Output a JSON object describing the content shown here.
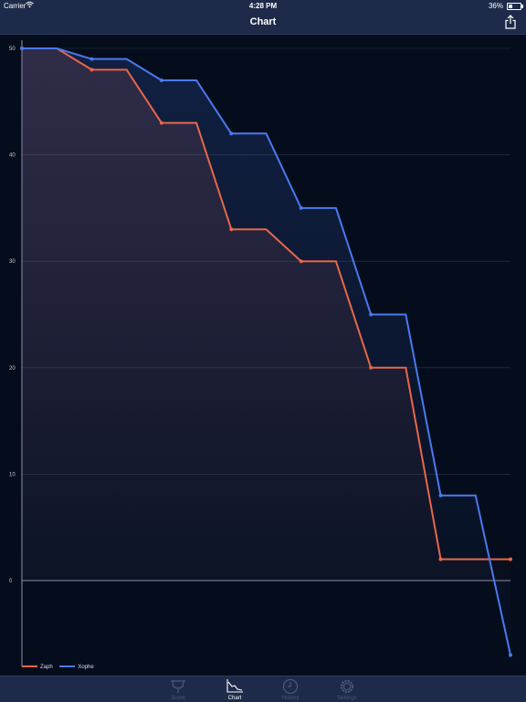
{
  "status_bar": {
    "carrier": "Carrier",
    "time": "4:28 PM",
    "battery": "36%"
  },
  "nav": {
    "title": "Chart",
    "share_icon": "share-icon"
  },
  "tabs": [
    {
      "label": "Score",
      "icon": "score-icon",
      "active": false
    },
    {
      "label": "Chart",
      "icon": "chart-icon",
      "active": true
    },
    {
      "label": "History",
      "icon": "clock-icon",
      "active": false
    },
    {
      "label": "Settings",
      "icon": "gear-icon",
      "active": false
    }
  ],
  "colors": {
    "zaph": "#e8674a",
    "xophe": "#4a79f0",
    "background": "#050d1c",
    "bar": "#1d2a49"
  },
  "chart_data": {
    "type": "line",
    "step": true,
    "x": [
      0,
      1,
      2,
      3,
      4,
      5,
      6,
      7,
      8,
      9,
      10,
      11,
      12,
      13,
      14
    ],
    "series": [
      {
        "name": "Zaph",
        "values": [
          50,
          50,
          48,
          48,
          43,
          43,
          33,
          33,
          30,
          30,
          20,
          20,
          2,
          2,
          2
        ]
      },
      {
        "name": "Xophe",
        "values": [
          50,
          50,
          49,
          49,
          47,
          47,
          42,
          42,
          35,
          35,
          25,
          25,
          8,
          8,
          -7
        ]
      }
    ],
    "y_ticks": [
      "50",
      "40",
      "30",
      "20",
      "10",
      "0"
    ],
    "ylim": [
      -7,
      50
    ],
    "grid": true,
    "legend": "bottom-left"
  }
}
